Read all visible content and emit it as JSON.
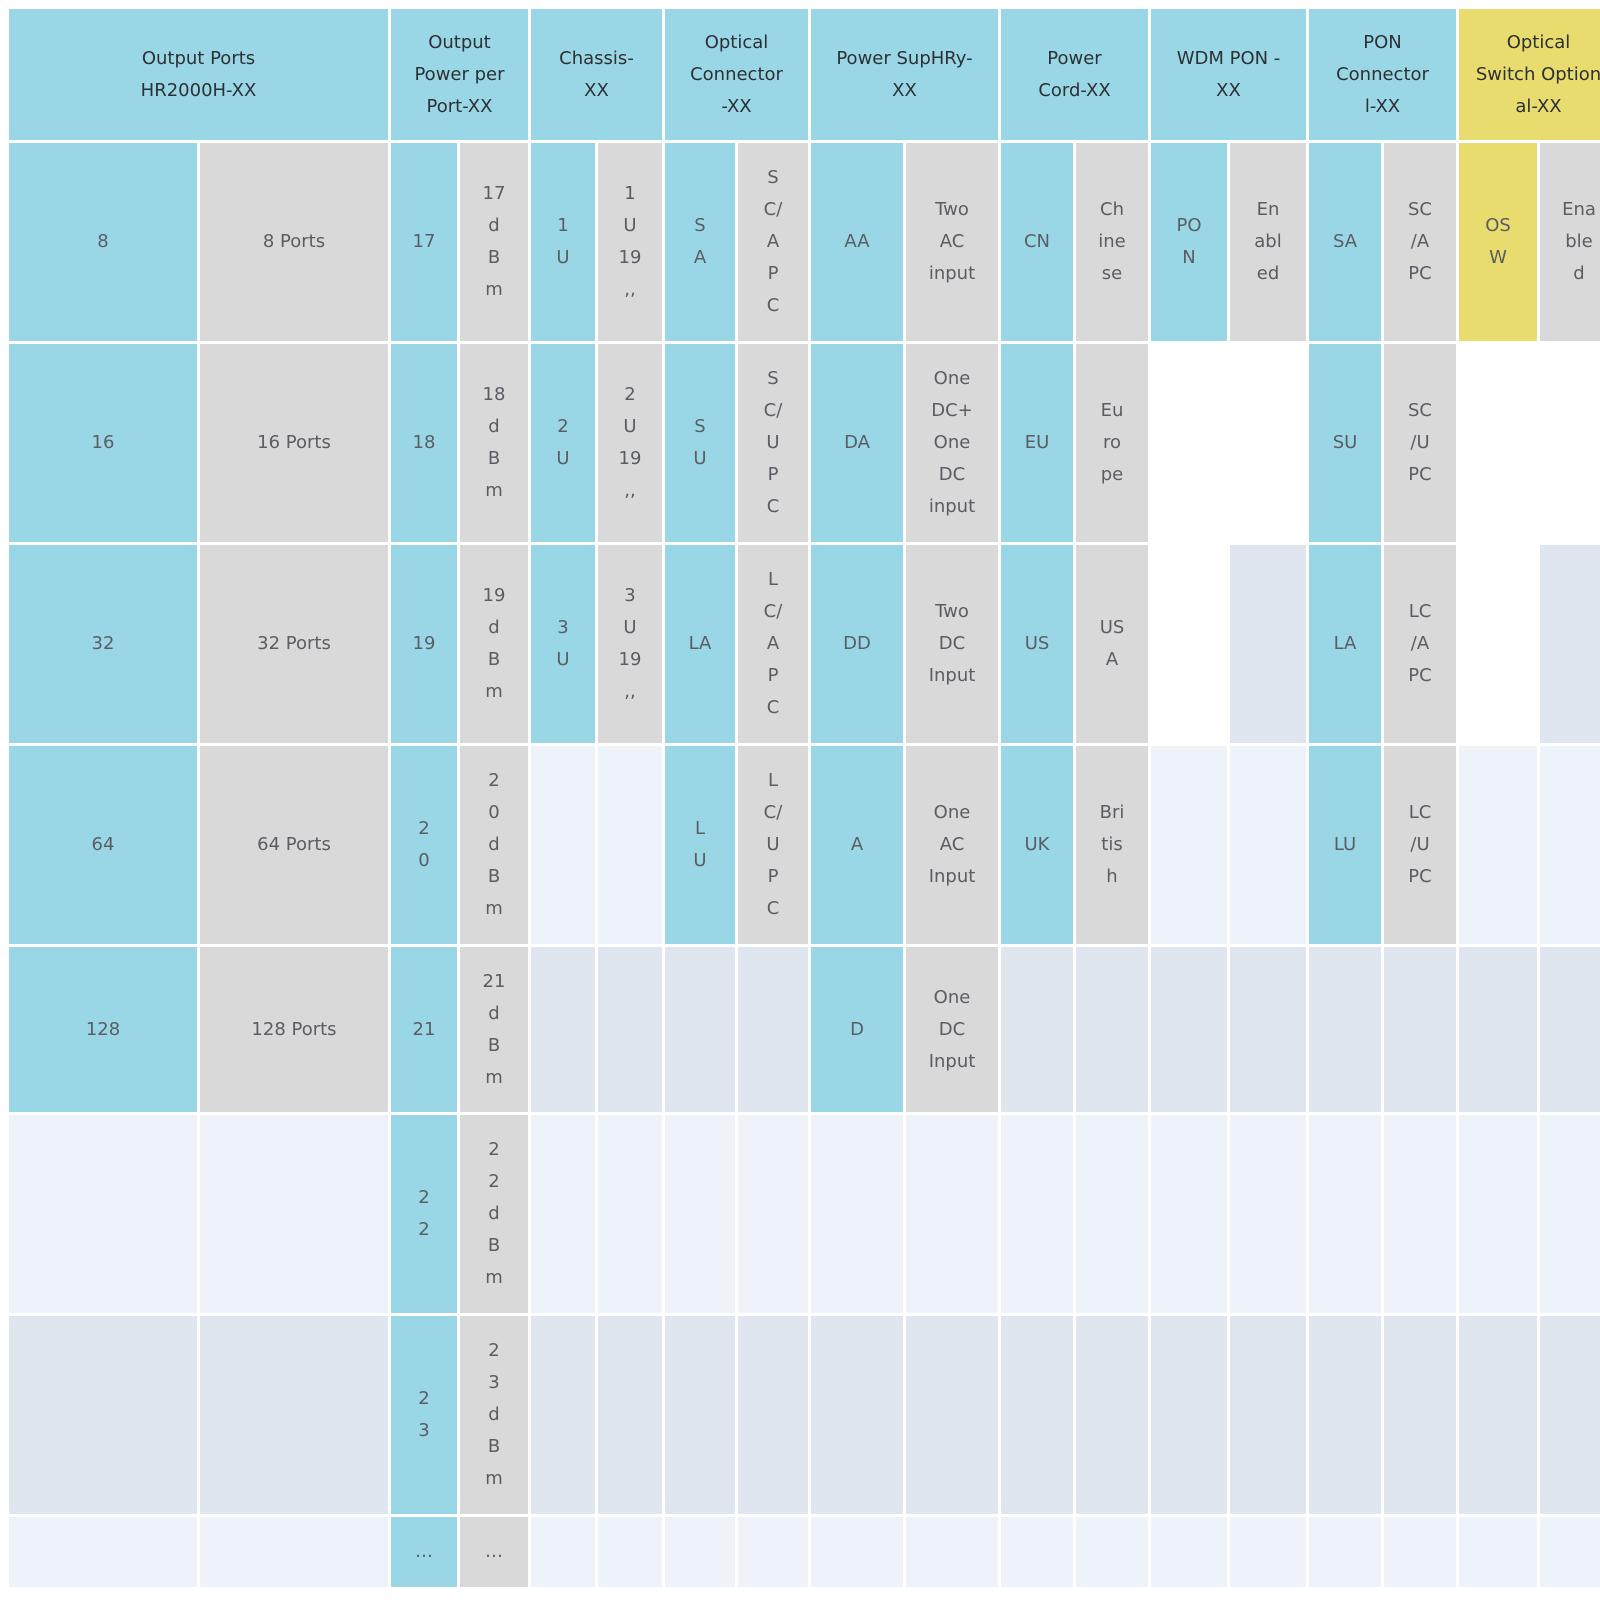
{
  "headers": [
    "Output Ports\nHR2000H-XX",
    "Output\nPower per\nPort-XX",
    "Chassis-\nXX",
    "Optical\nConnector\n-XX",
    "Power SupHRy-\nXX",
    "Power\nCord-XX",
    "WDM PON -\nXX",
    "PON\nConnector\nl-XX",
    "Optical\nSwitch Option\nal-XX"
  ],
  "output_ports": [
    {
      "code": "8",
      "label": "8 Ports"
    },
    {
      "code": "16",
      "label": "16 Ports"
    },
    {
      "code": "32",
      "label": "32 Ports"
    },
    {
      "code": "64",
      "label": "64 Ports"
    },
    {
      "code": "128",
      "label": "128 Ports"
    }
  ],
  "output_power": [
    {
      "code": "17",
      "label": "17\nd\nB\nm"
    },
    {
      "code": "18",
      "label": "18\nd\nB\nm"
    },
    {
      "code": "19",
      "label": "19\nd\nB\nm"
    },
    {
      "code": "2\n0",
      "label": "2\n0\nd\nB\nm"
    },
    {
      "code": "21",
      "label": "21\nd\nB\nm"
    },
    {
      "code": "2\n2",
      "label": "2\n2\nd\nB\nm"
    },
    {
      "code": "2\n3",
      "label": "2\n3\nd\nB\nm"
    },
    {
      "code": "…",
      "label": "…"
    }
  ],
  "chassis": [
    {
      "code": "1\nU",
      "label": "1\nU\n19\n,,"
    },
    {
      "code": "2\nU",
      "label": "2\nU\n19\n,,"
    },
    {
      "code": "3\nU",
      "label": "3\nU\n19\n,,"
    }
  ],
  "optical_connector": [
    {
      "code": "S\nA",
      "label": "S\nC/\nA\nP\nC"
    },
    {
      "code": "S\nU",
      "label": "S\nC/\nU\nP\nC"
    },
    {
      "code": "LA",
      "label": "L\nC/\nA\nP\nC"
    },
    {
      "code": "L\nU",
      "label": "L\nC/\nU\nP\nC"
    }
  ],
  "power_supply": [
    {
      "code": "AA",
      "label": "Two\nAC\ninput"
    },
    {
      "code": "DA",
      "label": "One\nDC+\nOne\nDC\ninput"
    },
    {
      "code": "DD",
      "label": "Two\nDC\nInput"
    },
    {
      "code": "A",
      "label": "One\nAC\nInput"
    },
    {
      "code": "D",
      "label": "One\nDC\nInput"
    }
  ],
  "power_cord": [
    {
      "code": "CN",
      "label": "Ch\nine\nse"
    },
    {
      "code": "EU",
      "label": "Eu\nro\npe"
    },
    {
      "code": "US",
      "label": "US\nA"
    },
    {
      "code": "UK",
      "label": "Bri\ntis\nh"
    }
  ],
  "wdm_pon": [
    {
      "code": "PO\nN",
      "label": "En\nabl\ned"
    }
  ],
  "pon_connector": [
    {
      "code": "SA",
      "label": "SC\n/A\nPC"
    },
    {
      "code": "SU",
      "label": "SC\n/U\nPC"
    },
    {
      "code": "LA",
      "label": "LC\n/A\nPC"
    },
    {
      "code": "LU",
      "label": "LC\n/U\nPC"
    }
  ],
  "optical_switch": [
    {
      "code": "OS\nW",
      "label": "Ena\nble\nd"
    }
  ],
  "colors": {
    "code_cell": "#9ad7e6",
    "label_cell": "#d9d9d9",
    "optical_switch_accent": "#e8dc6e",
    "empty_light": "#eef2f9",
    "empty_mid": "#dfe6f0",
    "text": "#5a5d63"
  }
}
